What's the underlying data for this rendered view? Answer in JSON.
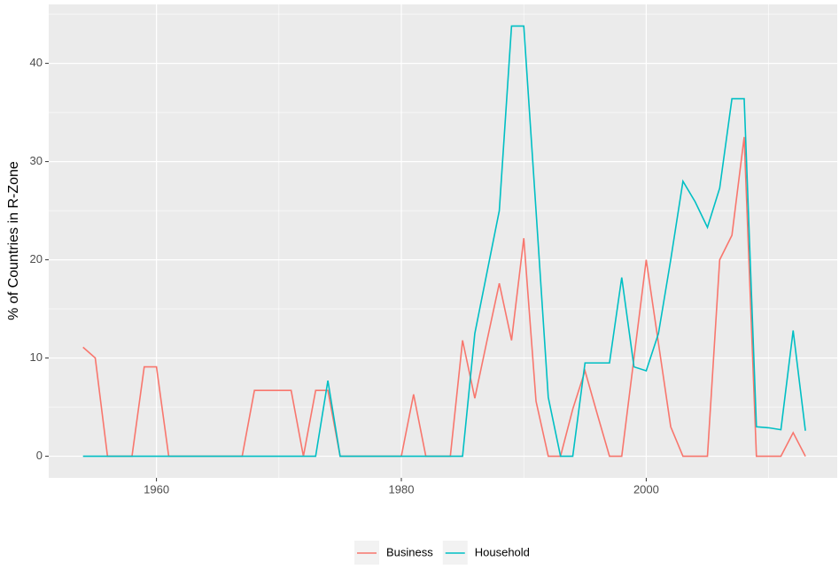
{
  "chart_data": {
    "type": "line",
    "y_label": "% of Countries in R-Zone",
    "x": [
      1954,
      1955,
      1956,
      1957,
      1958,
      1959,
      1960,
      1961,
      1962,
      1963,
      1964,
      1965,
      1966,
      1967,
      1968,
      1969,
      1970,
      1971,
      1972,
      1973,
      1974,
      1975,
      1976,
      1977,
      1978,
      1979,
      1980,
      1981,
      1982,
      1983,
      1984,
      1985,
      1986,
      1987,
      1988,
      1989,
      1990,
      1991,
      1992,
      1993,
      1994,
      1995,
      1996,
      1997,
      1998,
      1999,
      2000,
      2001,
      2002,
      2003,
      2004,
      2005,
      2006,
      2007,
      2008,
      2009,
      2010,
      2011,
      2012,
      2013
    ],
    "series": [
      {
        "name": "Business",
        "color": "#F8766D",
        "values": [
          11.1,
          10,
          0,
          0,
          0,
          9.1,
          9.1,
          0,
          0,
          0,
          0,
          0,
          0,
          0,
          6.7,
          6.7,
          6.7,
          6.7,
          0,
          6.7,
          6.7,
          0,
          0,
          0,
          0,
          0,
          0,
          6.3,
          0,
          0,
          0,
          11.8,
          5.9,
          11.8,
          17.6,
          11.8,
          22.2,
          5.6,
          0,
          0,
          4.8,
          8.7,
          4.3,
          0,
          0,
          10,
          20,
          11.5,
          3,
          0,
          0,
          0,
          20,
          22.5,
          32.5,
          0,
          0,
          0,
          2.4,
          0
        ]
      },
      {
        "name": "Household",
        "color": "#00BFC4",
        "values": [
          0,
          0,
          0,
          0,
          0,
          0,
          0,
          0,
          0,
          0,
          0,
          0,
          0,
          0,
          0,
          0,
          0,
          0,
          0,
          0,
          7.7,
          0,
          0,
          0,
          0,
          0,
          0,
          0,
          0,
          0,
          0,
          0,
          12.5,
          18.75,
          25,
          43.8,
          43.8,
          25,
          6,
          0,
          0,
          9.5,
          9.5,
          9.5,
          18.2,
          9.1,
          8.7,
          12.5,
          20,
          28,
          25.9,
          23.3,
          27.3,
          36.4,
          36.4,
          3,
          2.9,
          2.7,
          12.8,
          2.6
        ]
      }
    ],
    "xlim": [
      1951.2,
      2015.6
    ],
    "xticks": [
      1960,
      1980,
      2000
    ],
    "ylim": [
      -2.2,
      46
    ],
    "yticks": [
      0,
      10,
      20,
      30,
      40
    ],
    "grid": true,
    "legend": "bottom"
  }
}
